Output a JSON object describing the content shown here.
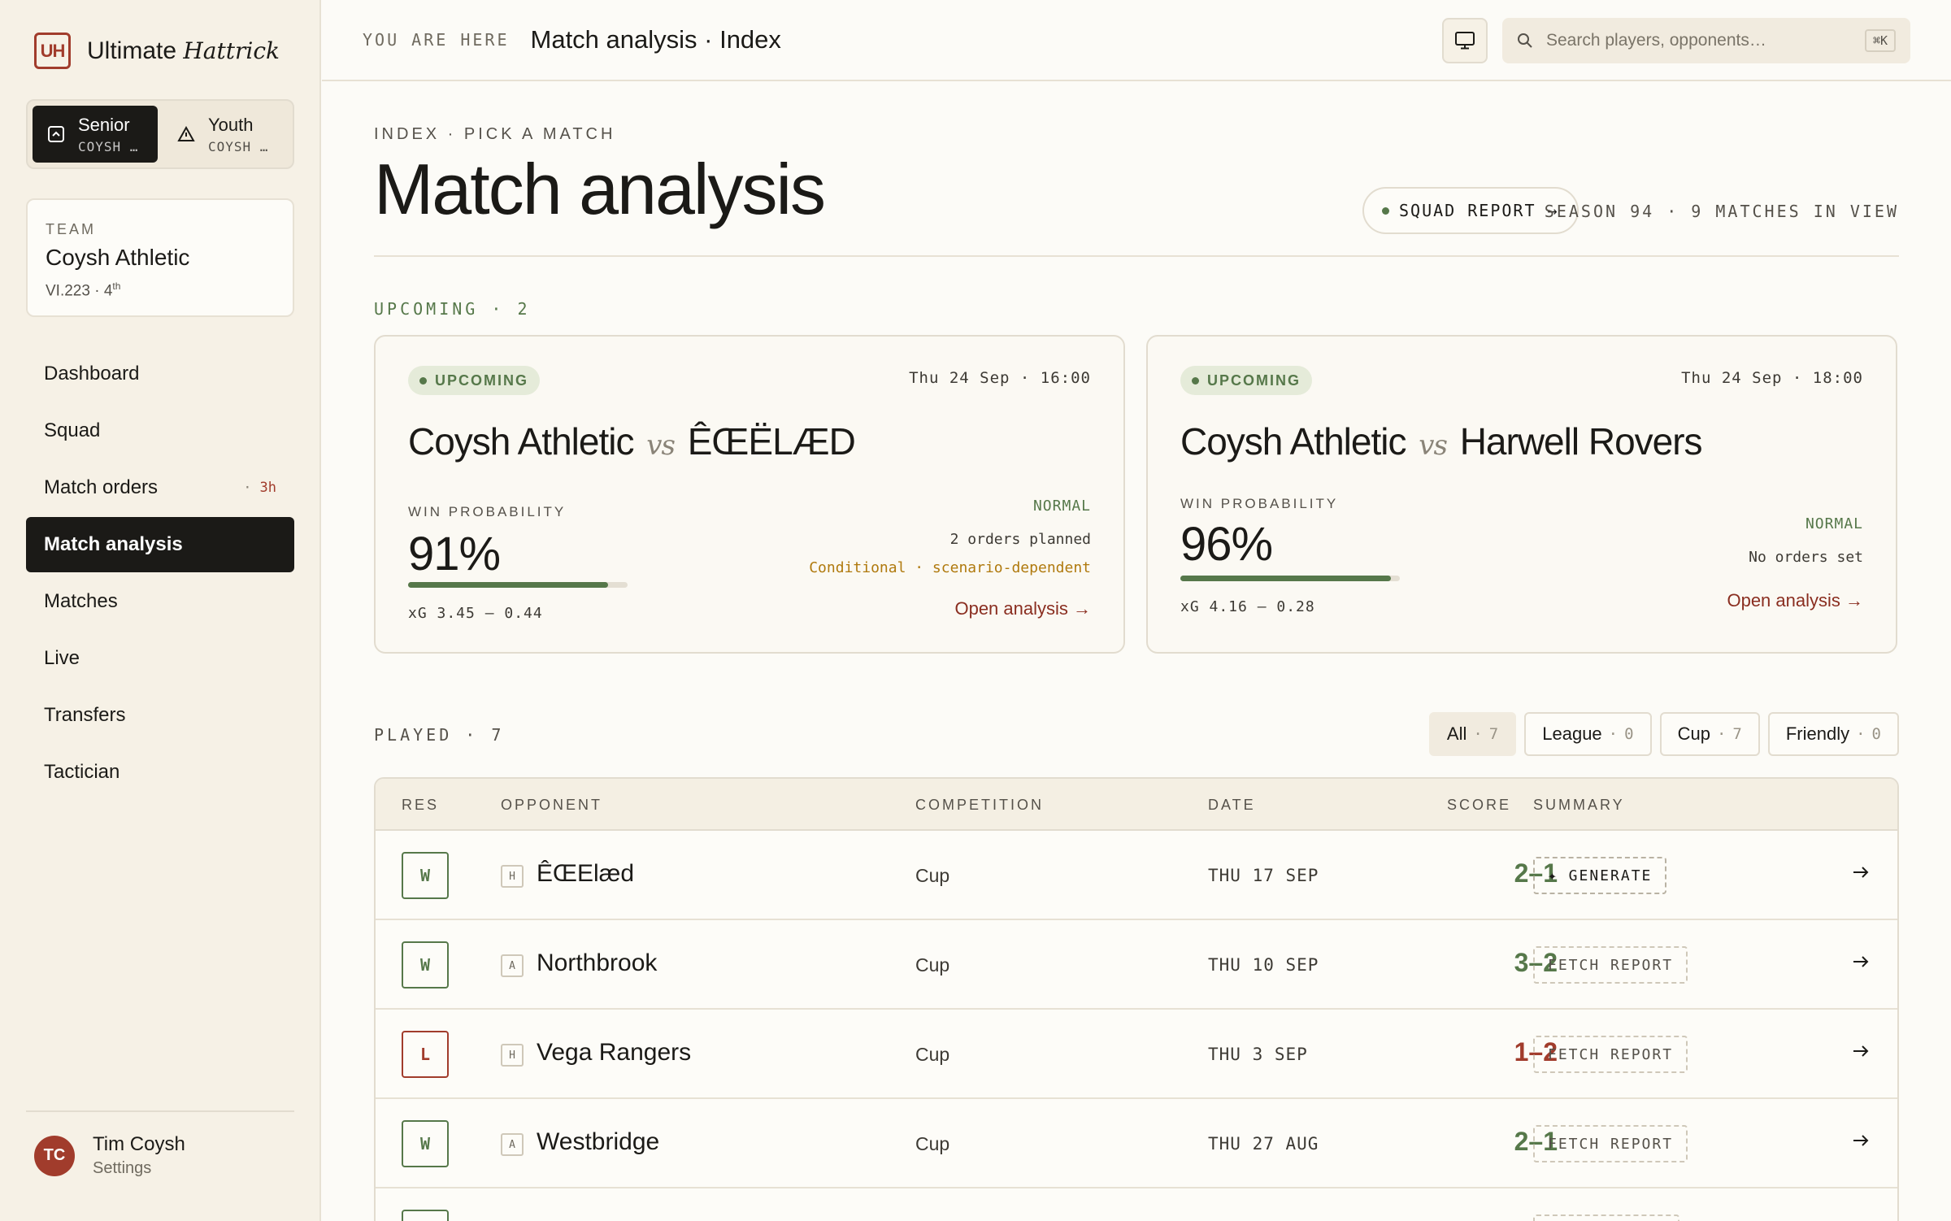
{
  "brand": {
    "mark": "UH",
    "name": "Ultimate",
    "name_italic": "Hattrick"
  },
  "scope": [
    {
      "label": "Senior",
      "sub": "COYSH …",
      "active": true
    },
    {
      "label": "Youth",
      "sub": "COYSH …",
      "active": false
    }
  ],
  "team": {
    "kicker": "TEAM",
    "name": "Coysh Athletic",
    "meta": "VI.223 · 4",
    "meta_sup": "th"
  },
  "nav": [
    {
      "label": "Dashboard"
    },
    {
      "label": "Squad"
    },
    {
      "label": "Match orders",
      "badge_dot": "·",
      "badge": "3h"
    },
    {
      "label": "Match analysis",
      "active": true
    },
    {
      "label": "Matches"
    },
    {
      "label": "Live"
    },
    {
      "label": "Transfers"
    },
    {
      "label": "Tactician"
    }
  ],
  "user": {
    "initials": "TC",
    "name": "Tim Coysh",
    "sub": "Settings"
  },
  "topbar": {
    "crumb_kicker": "YOU ARE HERE",
    "crumb_title": "Match analysis · Index",
    "search_placeholder": "Search players, opponents…",
    "shortcut": "⌘K"
  },
  "header": {
    "kicker": "INDEX · PICK A MATCH",
    "title": "Match analysis",
    "squad_report": "SQUAD REPORT →",
    "season": "SEASON 94 · 9 MATCHES IN VIEW"
  },
  "upcoming": {
    "label": "UPCOMING · 2",
    "cards": [
      {
        "status": "UPCOMING",
        "date": "Thu 24 Sep · 16:00",
        "home": "Coysh Athletic",
        "vs": "vs",
        "away": "ÊŒËLÆD",
        "wp_label": "WIN PROBABILITY",
        "wp": "91%",
        "wp_fraction": 0.91,
        "xg": "xG 3.45 – 0.44",
        "mode": "NORMAL",
        "orders": "2 orders planned",
        "note": "Conditional · scenario-dependent",
        "link": "Open analysis →"
      },
      {
        "status": "UPCOMING",
        "date": "Thu 24 Sep · 18:00",
        "home": "Coysh Athletic",
        "vs": "vs",
        "away": "Harwell Rovers",
        "wp_label": "WIN PROBABILITY",
        "wp": "96%",
        "wp_fraction": 0.96,
        "xg": "xG 4.16 – 0.28",
        "mode": "NORMAL",
        "orders": "No orders set",
        "note": "",
        "link": "Open analysis →"
      }
    ]
  },
  "played": {
    "label": "PLAYED · 7",
    "filters": [
      {
        "label": "All",
        "dot": "·",
        "count": "7",
        "active": true
      },
      {
        "label": "League",
        "dot": "·",
        "count": "0"
      },
      {
        "label": "Cup",
        "dot": "·",
        "count": "7"
      },
      {
        "label": "Friendly",
        "dot": "·",
        "count": "0"
      }
    ],
    "columns": {
      "res": "RES",
      "opponent": "OPPONENT",
      "competition": "COMPETITION",
      "date": "DATE",
      "score": "SCORE",
      "summary": "SUMMARY"
    },
    "rows": [
      {
        "res": "W",
        "venue": "H",
        "opponent": "ÊŒElæd",
        "competition": "Cup",
        "date": "THU 17 SEP",
        "score": "2–1",
        "summary": "✦ GENERATE"
      },
      {
        "res": "W",
        "venue": "A",
        "opponent": "Northbrook",
        "competition": "Cup",
        "date": "THU 10 SEP",
        "score": "3–2",
        "summary": "FETCH REPORT"
      },
      {
        "res": "L",
        "venue": "H",
        "opponent": "Vega Rangers",
        "competition": "Cup",
        "date": "THU 3 SEP",
        "score": "1–2",
        "summary": "FETCH REPORT"
      },
      {
        "res": "W",
        "venue": "A",
        "opponent": "Westbridge",
        "competition": "Cup",
        "date": "THU 27 AUG",
        "score": "2–1",
        "summary": "FETCH REPORT"
      }
    ]
  },
  "colors": {
    "accent": "#a13c2c",
    "win": "#56784a",
    "loss": "#a13c2c",
    "ink": "#1b1a17"
  }
}
